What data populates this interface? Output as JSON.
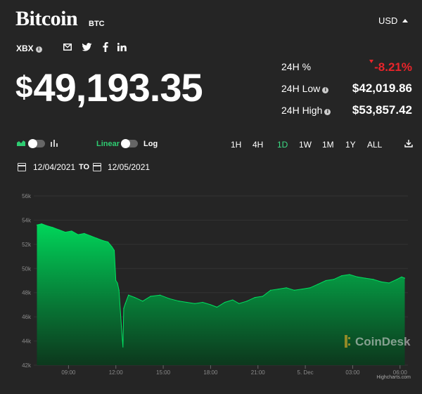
{
  "header": {
    "title": "Bitcoin",
    "ticker": "BTC",
    "currency": "USD",
    "index": "XBX"
  },
  "price": {
    "symbol": "$",
    "value": "49,193.35"
  },
  "stats": {
    "pct_label": "24H %",
    "pct_value": "-8.21%",
    "low_label": "24H Low",
    "low_value": "$42,019.86",
    "high_label": "24H High",
    "high_value": "$53,857.42"
  },
  "controls": {
    "linear_label": "Linear",
    "log_label": "Log",
    "timeframes": [
      "1H",
      "4H",
      "1D",
      "1W",
      "1M",
      "1Y",
      "ALL"
    ],
    "active_timeframe": "1D",
    "date_from": "12/04/2021",
    "date_to_label": "TO",
    "date_to": "12/05/2021"
  },
  "watermark": "CoinDesk",
  "credit": "Highcharts.com",
  "colors": {
    "background": "#252525",
    "line": "#00e060",
    "negative": "#e8242a",
    "active": "#3ddc84"
  },
  "chart_data": {
    "type": "area",
    "ylim": [
      42000,
      56000
    ],
    "y_ticks": [
      "42k",
      "44k",
      "46k",
      "48k",
      "50k",
      "52k",
      "54k",
      "56k"
    ],
    "y_tick_values": [
      42000,
      44000,
      46000,
      48000,
      50000,
      52000,
      54000,
      56000
    ],
    "x_ticks": [
      "09:00",
      "12:00",
      "15:00",
      "18:00",
      "21:00",
      "5. Dec",
      "03:00",
      "06:00"
    ],
    "x_tick_values": [
      9,
      12,
      15,
      18,
      21,
      24,
      27,
      30
    ],
    "xlim": [
      6.8,
      30.5
    ],
    "series": [
      {
        "x": [
          7.0,
          7.3,
          7.6,
          8.0,
          8.4,
          8.8,
          9.2,
          9.6,
          10.0,
          10.4,
          10.8,
          11.2,
          11.5,
          11.75,
          11.9,
          12.0,
          12.1,
          12.2,
          12.35,
          12.45,
          12.5,
          12.6,
          12.8,
          13.2,
          13.7,
          14.2,
          14.8,
          15.4,
          16.0,
          16.5,
          17.0,
          17.5,
          18.0,
          18.4,
          18.9,
          19.4,
          19.8,
          20.3,
          20.8,
          21.3,
          21.8,
          22.3,
          22.8,
          23.3,
          23.8,
          24.3,
          24.8,
          25.3,
          25.8,
          26.3,
          26.8,
          27.3,
          27.8,
          28.3,
          28.8,
          29.3,
          29.8,
          30.1,
          30.3
        ],
        "y": [
          53600,
          53700,
          53550,
          53400,
          53200,
          53000,
          53100,
          52800,
          52900,
          52700,
          52500,
          52300,
          52200,
          51800,
          51500,
          49000,
          48800,
          48200,
          45200,
          43500,
          46700,
          47100,
          47800,
          47600,
          47300,
          47700,
          47800,
          47500,
          47300,
          47200,
          47100,
          47200,
          47000,
          46800,
          47200,
          47400,
          47100,
          47300,
          47600,
          47700,
          48200,
          48300,
          48400,
          48200,
          48300,
          48400,
          48700,
          49000,
          49100,
          49400,
          49500,
          49300,
          49200,
          49100,
          48900,
          48800,
          49100,
          49300,
          49200
        ]
      }
    ]
  }
}
